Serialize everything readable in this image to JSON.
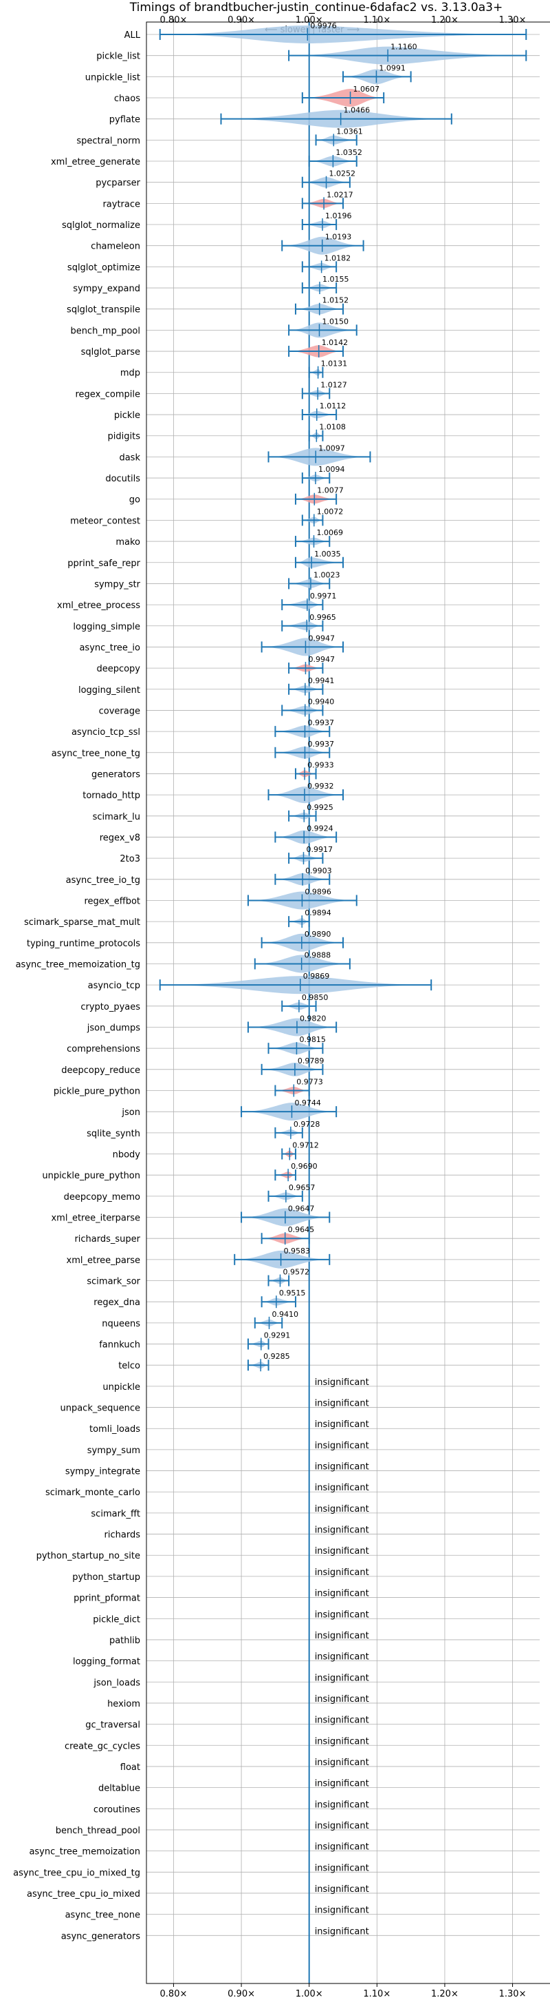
{
  "chart_data": {
    "type": "violin",
    "title": "Timings of brandtbucher-justin_continue-6dafac2 vs. 3.13.0a3+",
    "direction_note": "⟵ slower | faster ⟶",
    "xlim": [
      0.76,
      1.34
    ],
    "xticks": [
      0.8,
      0.9,
      1.0,
      1.1,
      1.2,
      1.3
    ],
    "xtick_labels": [
      "0.80×",
      "0.90×",
      "1.00×",
      "1.10×",
      "1.20×",
      "1.30×"
    ],
    "reference_line": 1.0,
    "grid": true,
    "colors": {
      "normal": "#1f77b4",
      "normal_fill": "#a9c9e6",
      "highlight_fill": "#f2a0a0",
      "grid": "#b0b0b0"
    },
    "insignificant_label": "insignificant",
    "benchmarks": [
      {
        "name": "ALL",
        "value": 0.9976,
        "label": "0.9976",
        "lo": 0.78,
        "hi": 1.32,
        "highlight": false
      },
      {
        "name": "pickle_list",
        "value": 1.116,
        "label": "1.1160",
        "lo": 0.97,
        "hi": 1.32,
        "highlight": false
      },
      {
        "name": "unpickle_list",
        "value": 1.0991,
        "label": "1.0991",
        "lo": 1.05,
        "hi": 1.15,
        "highlight": false
      },
      {
        "name": "chaos",
        "value": 1.0607,
        "label": "1.0607",
        "lo": 0.99,
        "hi": 1.11,
        "highlight": true
      },
      {
        "name": "pyflate",
        "value": 1.0466,
        "label": "1.0466",
        "lo": 0.87,
        "hi": 1.21,
        "highlight": false
      },
      {
        "name": "spectral_norm",
        "value": 1.0361,
        "label": "1.0361",
        "lo": 1.01,
        "hi": 1.07,
        "highlight": false
      },
      {
        "name": "xml_etree_generate",
        "value": 1.0352,
        "label": "1.0352",
        "lo": 1.0,
        "hi": 1.07,
        "highlight": false
      },
      {
        "name": "pycparser",
        "value": 1.0252,
        "label": "1.0252",
        "lo": 0.99,
        "hi": 1.06,
        "highlight": false
      },
      {
        "name": "raytrace",
        "value": 1.0217,
        "label": "1.0217",
        "lo": 0.99,
        "hi": 1.05,
        "highlight": true
      },
      {
        "name": "sqlglot_normalize",
        "value": 1.0196,
        "label": "1.0196",
        "lo": 0.99,
        "hi": 1.04,
        "highlight": false
      },
      {
        "name": "chameleon",
        "value": 1.0193,
        "label": "1.0193",
        "lo": 0.96,
        "hi": 1.08,
        "highlight": false
      },
      {
        "name": "sqlglot_optimize",
        "value": 1.0182,
        "label": "1.0182",
        "lo": 0.99,
        "hi": 1.04,
        "highlight": false
      },
      {
        "name": "sympy_expand",
        "value": 1.0155,
        "label": "1.0155",
        "lo": 0.99,
        "hi": 1.04,
        "highlight": false
      },
      {
        "name": "sqlglot_transpile",
        "value": 1.0152,
        "label": "1.0152",
        "lo": 0.98,
        "hi": 1.05,
        "highlight": false
      },
      {
        "name": "bench_mp_pool",
        "value": 1.015,
        "label": "1.0150",
        "lo": 0.97,
        "hi": 1.07,
        "highlight": false
      },
      {
        "name": "sqlglot_parse",
        "value": 1.0142,
        "label": "1.0142",
        "lo": 0.97,
        "hi": 1.05,
        "highlight": true
      },
      {
        "name": "mdp",
        "value": 1.0131,
        "label": "1.0131",
        "lo": 1.0,
        "hi": 1.02,
        "highlight": false
      },
      {
        "name": "regex_compile",
        "value": 1.0127,
        "label": "1.0127",
        "lo": 0.99,
        "hi": 1.03,
        "highlight": false
      },
      {
        "name": "pickle",
        "value": 1.0112,
        "label": "1.0112",
        "lo": 0.99,
        "hi": 1.04,
        "highlight": false
      },
      {
        "name": "pidigits",
        "value": 1.0108,
        "label": "1.0108",
        "lo": 1.0,
        "hi": 1.02,
        "highlight": false
      },
      {
        "name": "dask",
        "value": 1.0097,
        "label": "1.0097",
        "lo": 0.94,
        "hi": 1.09,
        "highlight": false
      },
      {
        "name": "docutils",
        "value": 1.0094,
        "label": "1.0094",
        "lo": 0.99,
        "hi": 1.03,
        "highlight": false
      },
      {
        "name": "go",
        "value": 1.0077,
        "label": "1.0077",
        "lo": 0.98,
        "hi": 1.04,
        "highlight": true
      },
      {
        "name": "meteor_contest",
        "value": 1.0072,
        "label": "1.0072",
        "lo": 0.99,
        "hi": 1.02,
        "highlight": false
      },
      {
        "name": "mako",
        "value": 1.0069,
        "label": "1.0069",
        "lo": 0.98,
        "hi": 1.03,
        "highlight": false
      },
      {
        "name": "pprint_safe_repr",
        "value": 1.0035,
        "label": "1.0035",
        "lo": 0.98,
        "hi": 1.05,
        "highlight": false
      },
      {
        "name": "sympy_str",
        "value": 1.0023,
        "label": "1.0023",
        "lo": 0.97,
        "hi": 1.03,
        "highlight": false
      },
      {
        "name": "xml_etree_process",
        "value": 0.9971,
        "label": "0.9971",
        "lo": 0.96,
        "hi": 1.02,
        "highlight": false
      },
      {
        "name": "logging_simple",
        "value": 0.9965,
        "label": "0.9965",
        "lo": 0.96,
        "hi": 1.02,
        "highlight": false
      },
      {
        "name": "async_tree_io",
        "value": 0.9947,
        "label": "0.9947",
        "lo": 0.93,
        "hi": 1.05,
        "highlight": false
      },
      {
        "name": "deepcopy",
        "value": 0.9947,
        "label": "0.9947",
        "lo": 0.97,
        "hi": 1.02,
        "highlight": true
      },
      {
        "name": "logging_silent",
        "value": 0.9941,
        "label": "0.9941",
        "lo": 0.97,
        "hi": 1.02,
        "highlight": false
      },
      {
        "name": "coverage",
        "value": 0.994,
        "label": "0.9940",
        "lo": 0.96,
        "hi": 1.02,
        "highlight": false
      },
      {
        "name": "asyncio_tcp_ssl",
        "value": 0.9937,
        "label": "0.9937",
        "lo": 0.95,
        "hi": 1.03,
        "highlight": false
      },
      {
        "name": "async_tree_none_tg",
        "value": 0.9937,
        "label": "0.9937",
        "lo": 0.95,
        "hi": 1.03,
        "highlight": false
      },
      {
        "name": "generators",
        "value": 0.9933,
        "label": "0.9933",
        "lo": 0.98,
        "hi": 1.01,
        "highlight": true
      },
      {
        "name": "tornado_http",
        "value": 0.9932,
        "label": "0.9932",
        "lo": 0.94,
        "hi": 1.05,
        "highlight": false
      },
      {
        "name": "scimark_lu",
        "value": 0.9925,
        "label": "0.9925",
        "lo": 0.97,
        "hi": 1.01,
        "highlight": false
      },
      {
        "name": "regex_v8",
        "value": 0.9924,
        "label": "0.9924",
        "lo": 0.95,
        "hi": 1.04,
        "highlight": false
      },
      {
        "name": "2to3",
        "value": 0.9917,
        "label": "0.9917",
        "lo": 0.97,
        "hi": 1.02,
        "highlight": false
      },
      {
        "name": "async_tree_io_tg",
        "value": 0.9903,
        "label": "0.9903",
        "lo": 0.95,
        "hi": 1.03,
        "highlight": false
      },
      {
        "name": "regex_effbot",
        "value": 0.9896,
        "label": "0.9896",
        "lo": 0.91,
        "hi": 1.07,
        "highlight": false
      },
      {
        "name": "scimark_sparse_mat_mult",
        "value": 0.9894,
        "label": "0.9894",
        "lo": 0.97,
        "hi": 1.0,
        "highlight": false
      },
      {
        "name": "typing_runtime_protocols",
        "value": 0.989,
        "label": "0.9890",
        "lo": 0.93,
        "hi": 1.05,
        "highlight": false
      },
      {
        "name": "async_tree_memoization_tg",
        "value": 0.9888,
        "label": "0.9888",
        "lo": 0.92,
        "hi": 1.06,
        "highlight": false
      },
      {
        "name": "asyncio_tcp",
        "value": 0.9869,
        "label": "0.9869",
        "lo": 0.78,
        "hi": 1.18,
        "highlight": false
      },
      {
        "name": "crypto_pyaes",
        "value": 0.985,
        "label": "0.9850",
        "lo": 0.96,
        "hi": 1.01,
        "highlight": false
      },
      {
        "name": "json_dumps",
        "value": 0.982,
        "label": "0.9820",
        "lo": 0.91,
        "hi": 1.04,
        "highlight": false
      },
      {
        "name": "comprehensions",
        "value": 0.9815,
        "label": "0.9815",
        "lo": 0.94,
        "hi": 1.02,
        "highlight": false
      },
      {
        "name": "deepcopy_reduce",
        "value": 0.9789,
        "label": "0.9789",
        "lo": 0.93,
        "hi": 1.02,
        "highlight": false
      },
      {
        "name": "pickle_pure_python",
        "value": 0.9773,
        "label": "0.9773",
        "lo": 0.95,
        "hi": 1.0,
        "highlight": true
      },
      {
        "name": "json",
        "value": 0.9744,
        "label": "0.9744",
        "lo": 0.9,
        "hi": 1.04,
        "highlight": false
      },
      {
        "name": "sqlite_synth",
        "value": 0.9728,
        "label": "0.9728",
        "lo": 0.95,
        "hi": 0.99,
        "highlight": false
      },
      {
        "name": "nbody",
        "value": 0.9712,
        "label": "0.9712",
        "lo": 0.96,
        "hi": 0.98,
        "highlight": true
      },
      {
        "name": "unpickle_pure_python",
        "value": 0.969,
        "label": "0.9690",
        "lo": 0.95,
        "hi": 0.98,
        "highlight": true
      },
      {
        "name": "deepcopy_memo",
        "value": 0.9657,
        "label": "0.9657",
        "lo": 0.94,
        "hi": 0.99,
        "highlight": false
      },
      {
        "name": "xml_etree_iterparse",
        "value": 0.9647,
        "label": "0.9647",
        "lo": 0.9,
        "hi": 1.03,
        "highlight": false
      },
      {
        "name": "richards_super",
        "value": 0.9645,
        "label": "0.9645",
        "lo": 0.93,
        "hi": 1.0,
        "highlight": true
      },
      {
        "name": "xml_etree_parse",
        "value": 0.9583,
        "label": "0.9583",
        "lo": 0.89,
        "hi": 1.03,
        "highlight": false
      },
      {
        "name": "scimark_sor",
        "value": 0.9572,
        "label": "0.9572",
        "lo": 0.94,
        "hi": 0.97,
        "highlight": false
      },
      {
        "name": "regex_dna",
        "value": 0.9515,
        "label": "0.9515",
        "lo": 0.93,
        "hi": 0.98,
        "highlight": false
      },
      {
        "name": "nqueens",
        "value": 0.941,
        "label": "0.9410",
        "lo": 0.92,
        "hi": 0.96,
        "highlight": false
      },
      {
        "name": "fannkuch",
        "value": 0.9291,
        "label": "0.9291",
        "lo": 0.91,
        "hi": 0.94,
        "highlight": false
      },
      {
        "name": "telco",
        "value": 0.9285,
        "label": "0.9285",
        "lo": 0.91,
        "hi": 0.94,
        "highlight": false
      },
      {
        "name": "unpickle",
        "insignificant": true
      },
      {
        "name": "unpack_sequence",
        "insignificant": true
      },
      {
        "name": "tomli_loads",
        "insignificant": true
      },
      {
        "name": "sympy_sum",
        "insignificant": true
      },
      {
        "name": "sympy_integrate",
        "insignificant": true
      },
      {
        "name": "scimark_monte_carlo",
        "insignificant": true
      },
      {
        "name": "scimark_fft",
        "insignificant": true
      },
      {
        "name": "richards",
        "insignificant": true
      },
      {
        "name": "python_startup_no_site",
        "insignificant": true
      },
      {
        "name": "python_startup",
        "insignificant": true
      },
      {
        "name": "pprint_pformat",
        "insignificant": true
      },
      {
        "name": "pickle_dict",
        "insignificant": true
      },
      {
        "name": "pathlib",
        "insignificant": true
      },
      {
        "name": "logging_format",
        "insignificant": true
      },
      {
        "name": "json_loads",
        "insignificant": true
      },
      {
        "name": "hexiom",
        "insignificant": true
      },
      {
        "name": "gc_traversal",
        "insignificant": true
      },
      {
        "name": "create_gc_cycles",
        "insignificant": true
      },
      {
        "name": "float",
        "insignificant": true
      },
      {
        "name": "deltablue",
        "insignificant": true
      },
      {
        "name": "coroutines",
        "insignificant": true
      },
      {
        "name": "bench_thread_pool",
        "insignificant": true
      },
      {
        "name": "async_tree_memoization",
        "insignificant": true
      },
      {
        "name": "async_tree_cpu_io_mixed_tg",
        "insignificant": true
      },
      {
        "name": "async_tree_cpu_io_mixed",
        "insignificant": true
      },
      {
        "name": "async_tree_none",
        "insignificant": true
      },
      {
        "name": "async_generators",
        "insignificant": true
      }
    ]
  }
}
